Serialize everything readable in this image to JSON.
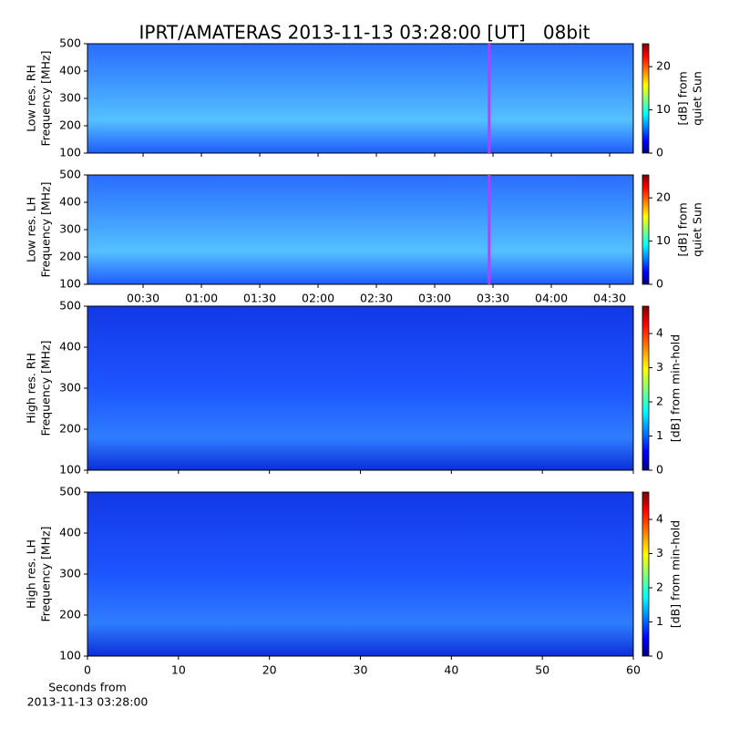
{
  "title": "IPRT/AMATERAS 2013-11-13 03:28:00 [UT]   08bit",
  "chart_data": [
    {
      "type": "spectrogram",
      "ylabel": [
        "Low res. RH",
        "Frequency [MHz]"
      ],
      "ylim": [
        100,
        500
      ],
      "yticks": [
        100,
        200,
        300,
        400,
        500
      ],
      "colormap": "jet",
      "clim": [
        0,
        25.3
      ],
      "cticks": [
        0,
        10,
        20
      ],
      "colorbar_label": [
        "[dB] from",
        "quiet Sun"
      ]
    },
    {
      "type": "spectrogram",
      "ylabel": [
        "Low res. LH",
        "Frequency [MHz]"
      ],
      "ylim": [
        100,
        500
      ],
      "yticks": [
        100,
        200,
        300,
        400,
        500
      ],
      "colormap": "jet",
      "clim": [
        0,
        25.3
      ],
      "cticks": [
        0,
        10,
        20
      ],
      "colorbar_label": [
        "[dB] from",
        "quiet Sun"
      ],
      "xlim": [
        0.023,
        4.703
      ],
      "xticks": [
        {
          "value": 0.5,
          "label": "00:30"
        },
        {
          "value": 1,
          "label": "01:00"
        },
        {
          "value": 1.5,
          "label": "01:30"
        },
        {
          "value": 2,
          "label": "02:00"
        },
        {
          "value": 2.5,
          "label": "02:30"
        },
        {
          "value": 3,
          "label": "03:00"
        },
        {
          "value": 3.5,
          "label": "03:30"
        },
        {
          "value": 4,
          "label": "04:00"
        },
        {
          "value": 4.5,
          "label": "04:30"
        }
      ],
      "cursor_x": 3.467,
      "cursor_color": "#cc33ff"
    },
    {
      "type": "spectrogram",
      "ylabel": [
        "High res. RH",
        "Frequency [MHz]"
      ],
      "ylim": [
        100,
        500
      ],
      "yticks": [
        100,
        200,
        300,
        400,
        500
      ],
      "colormap": "jet",
      "clim": [
        0,
        4.8
      ],
      "cticks": [
        0,
        1,
        2,
        3,
        4
      ],
      "colorbar_label": [
        "[dB] from min-hold"
      ]
    },
    {
      "type": "spectrogram",
      "ylabel": [
        "High res. LH",
        "Frequency [MHz]"
      ],
      "ylim": [
        100,
        500
      ],
      "yticks": [
        100,
        200,
        300,
        400,
        500
      ],
      "colormap": "jet",
      "clim": [
        0,
        4.8
      ],
      "cticks": [
        0,
        1,
        2,
        3,
        4
      ],
      "colorbar_label": [
        "[dB] from min-hold"
      ],
      "xlim": [
        0,
        60
      ],
      "xticks": [
        0,
        10,
        20,
        30,
        40,
        50,
        60
      ],
      "xlabel": [
        "Seconds from",
        "2013-11-13 03:28:00"
      ]
    }
  ]
}
